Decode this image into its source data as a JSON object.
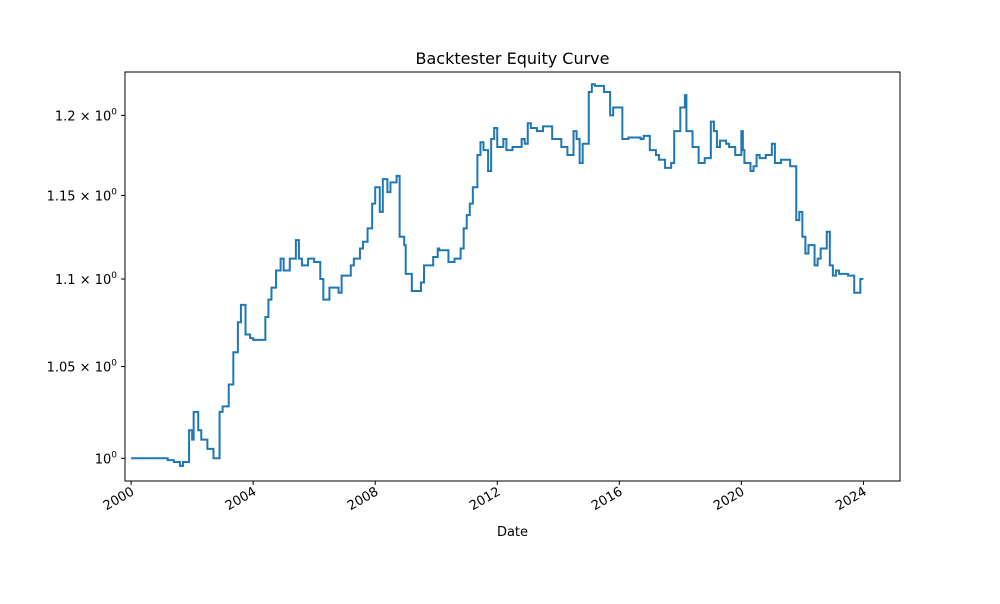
{
  "chart_data": {
    "type": "line",
    "title": "Backtester Equity Curve",
    "xlabel": "Date",
    "ylabel": "",
    "y_scale": "log",
    "grid": false,
    "legend": "none",
    "xlim": [
      1999.8,
      2025.2
    ],
    "ylim": [
      0.988,
      1.228
    ],
    "x_ticks": [
      {
        "value": 2000,
        "label": "2000"
      },
      {
        "value": 2004,
        "label": "2004"
      },
      {
        "value": 2008,
        "label": "2008"
      },
      {
        "value": 2012,
        "label": "2012"
      },
      {
        "value": 2016,
        "label": "2016"
      },
      {
        "value": 2020,
        "label": "2020"
      },
      {
        "value": 2024,
        "label": "2024"
      }
    ],
    "y_ticks": [
      {
        "value": 1.0,
        "base": "10",
        "exp": "0"
      },
      {
        "value": 1.05,
        "base": "1.05 × 10",
        "exp": "0"
      },
      {
        "value": 1.1,
        "base": "1.1 × 10",
        "exp": "0"
      },
      {
        "value": 1.15,
        "base": "1.15 × 10",
        "exp": "0"
      },
      {
        "value": 1.2,
        "base": "1.2 × 10",
        "exp": "0"
      }
    ],
    "series": [
      {
        "color": "#1f77b4",
        "step": "post",
        "x": [
          2000.0,
          2001.2,
          2001.4,
          2001.6,
          2001.7,
          2001.9,
          2002.0,
          2002.05,
          2002.2,
          2002.3,
          2002.5,
          2002.7,
          2002.9,
          2003.0,
          2003.2,
          2003.35,
          2003.5,
          2003.6,
          2003.75,
          2003.9,
          2004.0,
          2004.4,
          2004.5,
          2004.6,
          2004.75,
          2004.9,
          2005.0,
          2005.2,
          2005.4,
          2005.5,
          2005.6,
          2005.8,
          2006.0,
          2006.2,
          2006.3,
          2006.5,
          2006.8,
          2006.9,
          2007.2,
          2007.3,
          2007.5,
          2007.6,
          2007.75,
          2007.9,
          2008.0,
          2008.15,
          2008.25,
          2008.4,
          2008.5,
          2008.7,
          2008.8,
          2008.95,
          2009.0,
          2009.2,
          2009.5,
          2009.6,
          2009.9,
          2010.05,
          2010.1,
          2010.4,
          2010.6,
          2010.8,
          2010.9,
          2011.0,
          2011.1,
          2011.2,
          2011.35,
          2011.45,
          2011.55,
          2011.7,
          2011.8,
          2011.9,
          2012.0,
          2012.2,
          2012.3,
          2012.5,
          2012.7,
          2012.8,
          2012.9,
          2013.0,
          2013.1,
          2013.3,
          2013.5,
          2013.8,
          2014.1,
          2014.3,
          2014.5,
          2014.6,
          2014.7,
          2014.8,
          2015.0,
          2015.1,
          2015.2,
          2015.5,
          2015.7,
          2015.8,
          2016.1,
          2016.3,
          2016.7,
          2016.8,
          2017.0,
          2017.2,
          2017.3,
          2017.5,
          2017.7,
          2017.8,
          2018.0,
          2018.15,
          2018.2,
          2018.4,
          2018.6,
          2018.8,
          2019.0,
          2019.1,
          2019.2,
          2019.3,
          2019.5,
          2019.6,
          2019.8,
          2020.0,
          2020.05,
          2020.1,
          2020.3,
          2020.4,
          2020.5,
          2020.6,
          2020.8,
          2021.0,
          2021.1,
          2021.3,
          2021.6,
          2021.8,
          2021.9,
          2022.0,
          2022.1,
          2022.2,
          2022.4,
          2022.5,
          2022.6,
          2022.8,
          2022.9,
          2023.0,
          2023.1,
          2023.2,
          2023.5,
          2023.7,
          2023.9,
          2024.0
        ],
        "y": [
          1.0,
          0.999,
          0.998,
          0.996,
          0.998,
          1.015,
          1.01,
          1.025,
          1.015,
          1.01,
          1.005,
          1.0,
          1.025,
          1.028,
          1.04,
          1.058,
          1.075,
          1.085,
          1.068,
          1.066,
          1.065,
          1.078,
          1.088,
          1.095,
          1.105,
          1.112,
          1.105,
          1.112,
          1.123,
          1.112,
          1.108,
          1.112,
          1.11,
          1.1,
          1.088,
          1.095,
          1.092,
          1.102,
          1.108,
          1.112,
          1.118,
          1.122,
          1.13,
          1.145,
          1.155,
          1.14,
          1.16,
          1.152,
          1.158,
          1.162,
          1.125,
          1.12,
          1.103,
          1.093,
          1.098,
          1.108,
          1.113,
          1.118,
          1.117,
          1.11,
          1.112,
          1.118,
          1.13,
          1.138,
          1.145,
          1.155,
          1.175,
          1.183,
          1.178,
          1.165,
          1.185,
          1.192,
          1.18,
          1.185,
          1.178,
          1.18,
          1.18,
          1.185,
          1.182,
          1.195,
          1.192,
          1.19,
          1.193,
          1.185,
          1.18,
          1.175,
          1.19,
          1.185,
          1.17,
          1.182,
          1.215,
          1.22,
          1.219,
          1.215,
          1.2,
          1.205,
          1.185,
          1.186,
          1.185,
          1.187,
          1.178,
          1.175,
          1.172,
          1.167,
          1.17,
          1.19,
          1.205,
          1.213,
          1.19,
          1.18,
          1.17,
          1.173,
          1.196,
          1.19,
          1.18,
          1.184,
          1.182,
          1.18,
          1.175,
          1.19,
          1.178,
          1.17,
          1.165,
          1.168,
          1.175,
          1.173,
          1.175,
          1.182,
          1.17,
          1.172,
          1.168,
          1.135,
          1.14,
          1.125,
          1.115,
          1.12,
          1.108,
          1.112,
          1.118,
          1.128,
          1.108,
          1.102,
          1.105,
          1.103,
          1.102,
          1.092,
          1.1,
          1.1
        ]
      }
    ]
  }
}
